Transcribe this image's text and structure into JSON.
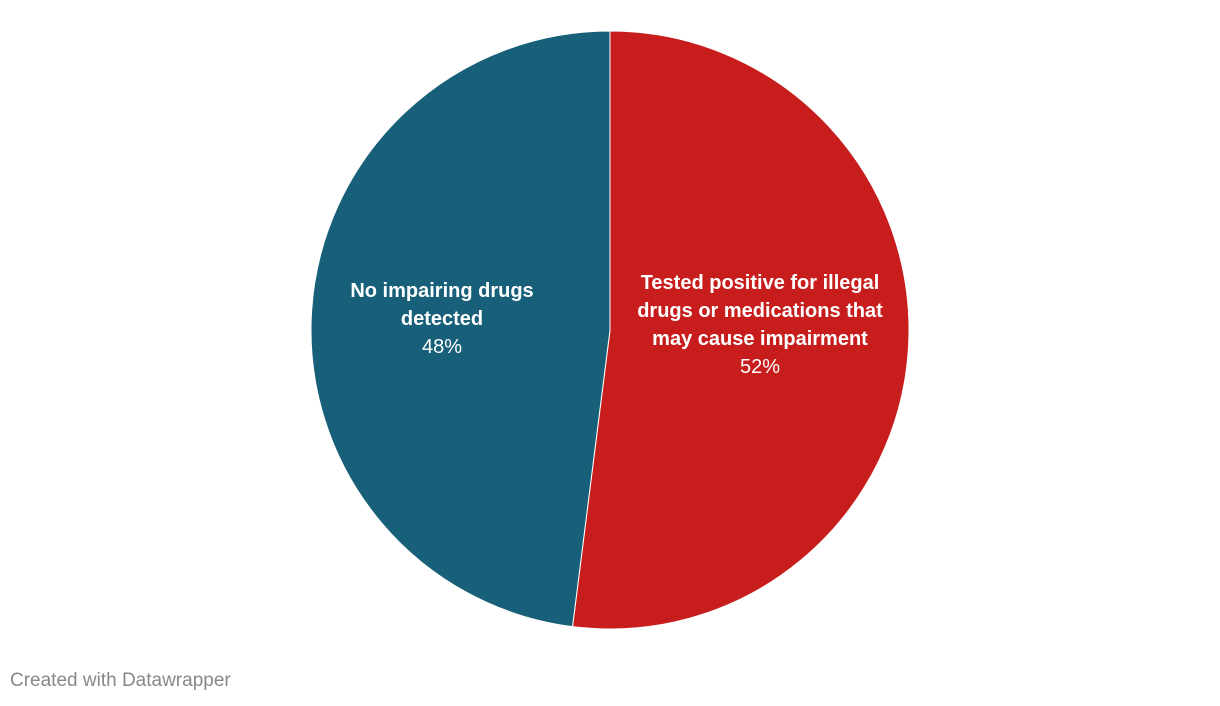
{
  "chart_data": {
    "type": "pie",
    "categories": [
      "Tested positive for illegal drugs or medications that may cause impairment",
      "No impairing drugs detected"
    ],
    "values": [
      52,
      48
    ],
    "value_labels": [
      "52%",
      "48%"
    ],
    "colors": [
      "#c71e1d",
      "#18607a"
    ]
  },
  "footer": "Created with Datawrapper"
}
